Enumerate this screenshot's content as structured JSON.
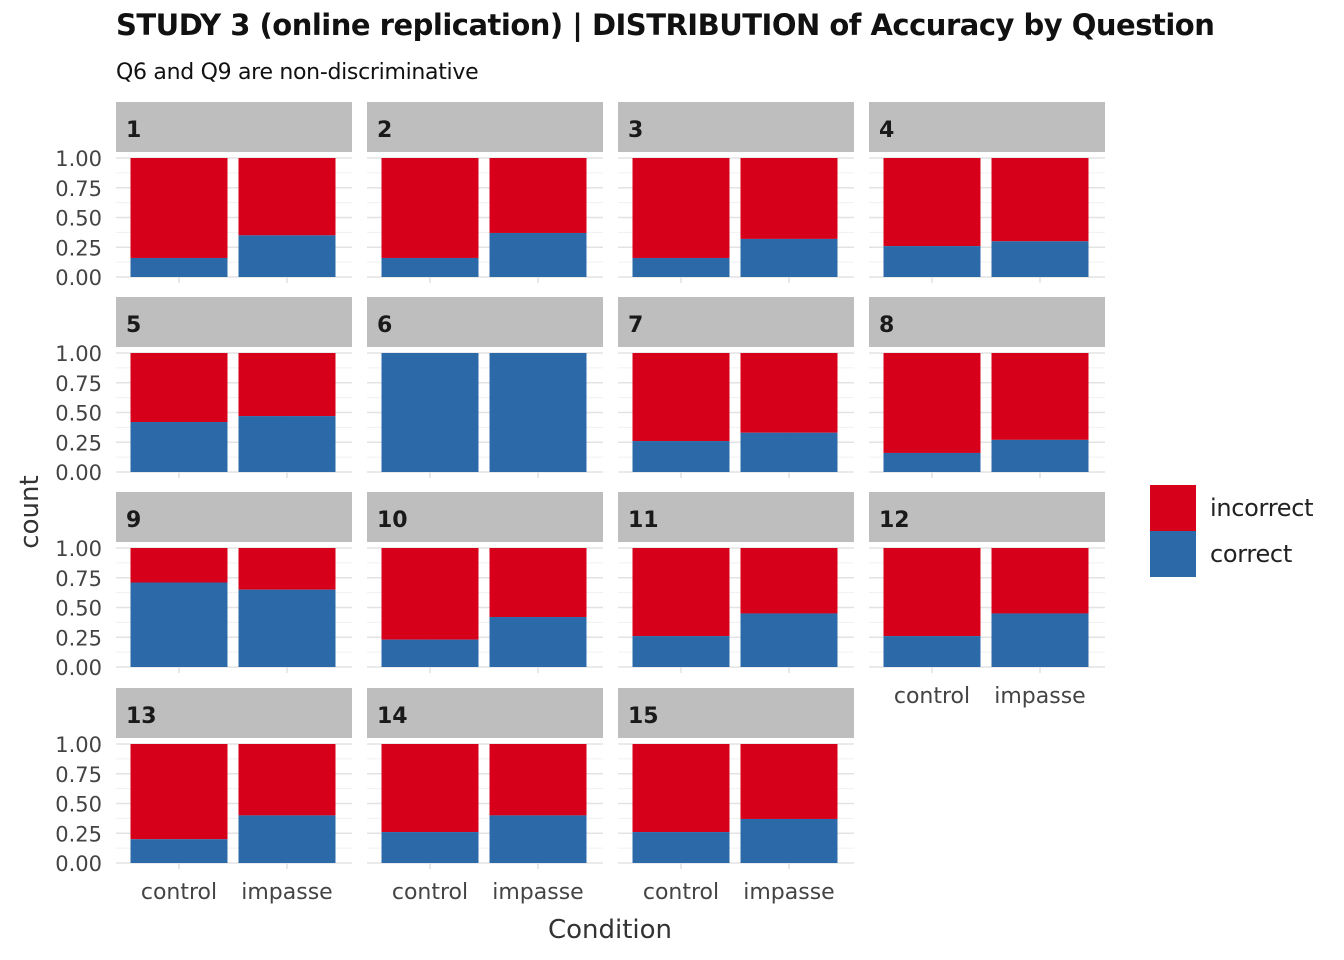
{
  "title": "STUDY 3 (online replication) | DISTRIBUTION of Accuracy by Question",
  "subtitle": "Q6 and Q9 are non-discriminative",
  "legend": {
    "items": [
      {
        "label": "incorrect",
        "color": "#d7001a"
      },
      {
        "label": "correct",
        "color": "#2c69a8"
      }
    ]
  },
  "chart_data": {
    "type": "bar",
    "stacked": true,
    "normalized": true,
    "xlabel": "Condition",
    "ylabel": "count",
    "ylim": [
      0,
      1
    ],
    "yticks": [
      "0.00",
      "0.25",
      "0.50",
      "0.75",
      "1.00"
    ],
    "categories": [
      "control",
      "impasse"
    ],
    "grid": true,
    "legend_position": "right",
    "panels": [
      {
        "label": "1",
        "correct": [
          0.16,
          0.35
        ]
      },
      {
        "label": "2",
        "correct": [
          0.16,
          0.37
        ]
      },
      {
        "label": "3",
        "correct": [
          0.16,
          0.32
        ]
      },
      {
        "label": "4",
        "correct": [
          0.26,
          0.3
        ]
      },
      {
        "label": "5",
        "correct": [
          0.42,
          0.47
        ]
      },
      {
        "label": "6",
        "correct": [
          1.0,
          1.0
        ]
      },
      {
        "label": "7",
        "correct": [
          0.26,
          0.33
        ]
      },
      {
        "label": "8",
        "correct": [
          0.16,
          0.27
        ]
      },
      {
        "label": "9",
        "correct": [
          0.71,
          0.65
        ]
      },
      {
        "label": "10",
        "correct": [
          0.23,
          0.42
        ]
      },
      {
        "label": "11",
        "correct": [
          0.26,
          0.45
        ]
      },
      {
        "label": "12",
        "correct": [
          0.26,
          0.45
        ]
      },
      {
        "label": "13",
        "correct": [
          0.2,
          0.4
        ]
      },
      {
        "label": "14",
        "correct": [
          0.26,
          0.4
        ]
      },
      {
        "label": "15",
        "correct": [
          0.26,
          0.37
        ]
      }
    ]
  }
}
